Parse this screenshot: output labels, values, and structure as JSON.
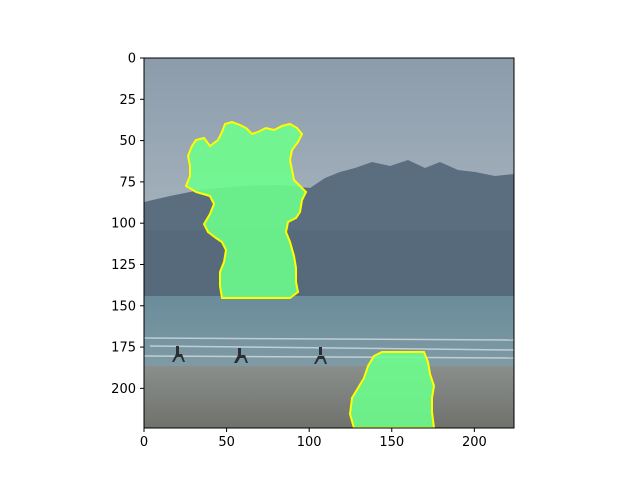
{
  "image": {
    "scene": "hazy beach with horse riders on wet sand, sea and wooded hills behind",
    "overlay_regions": [
      {
        "name": "mask-region-upper",
        "fill": "#6cff8c",
        "outline": "#ffff00"
      },
      {
        "name": "mask-region-lower",
        "fill": "#6cff8c",
        "outline": "#ffff00"
      }
    ],
    "riders_count": 3
  },
  "axes": {
    "x_ticks": [
      "0",
      "50",
      "100",
      "150",
      "200"
    ],
    "y_ticks": [
      "0",
      "25",
      "50",
      "75",
      "100",
      "125",
      "150",
      "175",
      "200"
    ],
    "x_range": [
      0,
      224
    ],
    "y_range": [
      0,
      224
    ],
    "y_inverted": true
  },
  "colors": {
    "sky": "#97a6b4",
    "hills": "#55687a",
    "sea": "#6f8f9e",
    "sand": "#7d7f7a",
    "mask_fill": "#6cff8c",
    "mask_outline": "#ffff00"
  }
}
